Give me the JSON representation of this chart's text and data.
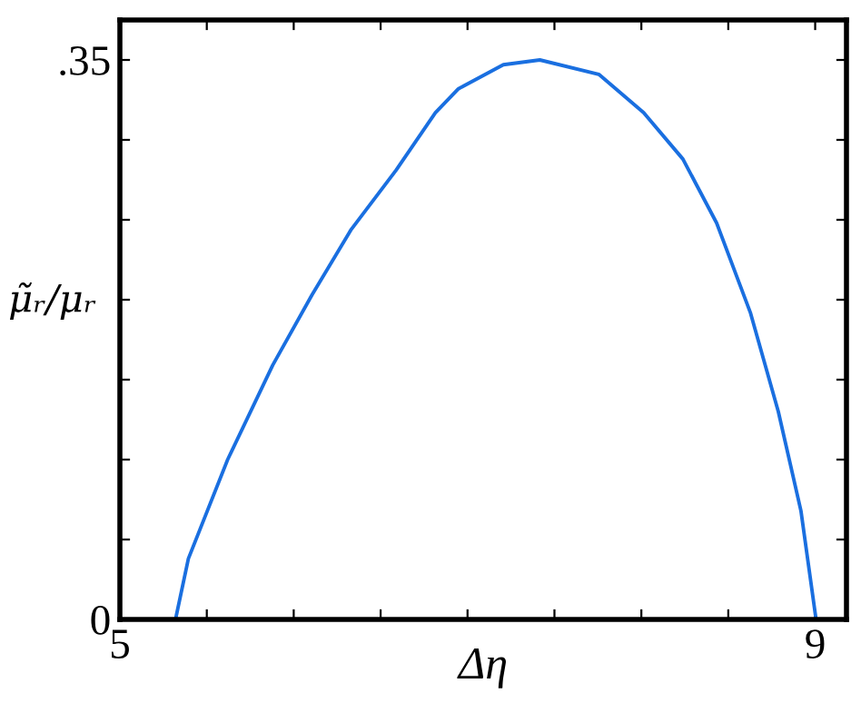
{
  "chart_data": {
    "type": "line",
    "xlabel": "Δη",
    "ylabel": "μ̃ᵣ/μᵣ",
    "x": [
      5.32,
      5.394,
      5.62,
      5.879,
      6.105,
      6.331,
      6.589,
      6.815,
      6.948,
      7.206,
      7.416,
      7.755,
      8.013,
      8.239,
      8.433,
      8.627,
      8.788,
      8.918,
      9.005
    ],
    "series": [
      {
        "color": "#1a6fe0",
        "values": [
          0,
          0.038,
          0.1,
          0.159,
          0.203,
          0.244,
          0.281,
          0.317,
          0.332,
          0.347,
          0.35,
          0.341,
          0.317,
          0.288,
          0.248,
          0.192,
          0.13,
          0.068,
          0
        ]
      }
    ],
    "xlim": [
      5,
      9.18
    ],
    "ylim": [
      0,
      0.375
    ],
    "xticks": [
      5,
      {
        "value": 5.5,
        "label": null
      },
      {
        "value": 6,
        "label": null
      },
      {
        "value": 6.5,
        "label": null
      },
      {
        "value": 7,
        "label": null
      },
      {
        "value": 7.5,
        "label": null
      },
      {
        "value": 8,
        "label": null
      },
      {
        "value": 8.5,
        "label": null
      },
      9
    ],
    "yticks": [
      0,
      {
        "value": 0.05,
        "label": null
      },
      {
        "value": 0.1,
        "label": null
      },
      {
        "value": 0.15,
        "label": null
      },
      {
        "value": 0.2,
        "label": null
      },
      {
        "value": 0.25,
        "label": null
      },
      {
        "value": 0.3,
        "label": null
      },
      {
        "value": 0.35,
        "label": ".35"
      }
    ],
    "grid": false,
    "legend": false,
    "marker": "none",
    "line_style": "solid"
  }
}
